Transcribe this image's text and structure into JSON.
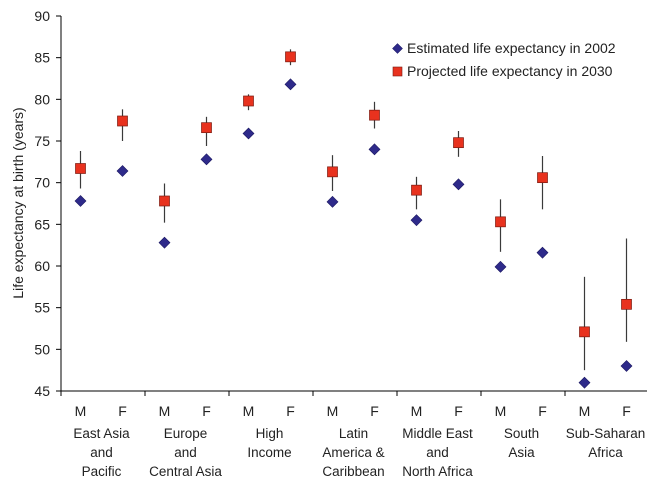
{
  "chart_data": {
    "type": "scatter",
    "ylabel": "Life expectancy at birth (years)",
    "xlabel": "",
    "ylim": [
      45,
      90
    ],
    "yticks": [
      45,
      50,
      55,
      60,
      65,
      70,
      75,
      80,
      85,
      90
    ],
    "grid": false,
    "legend_placement": "top-right",
    "sub_categories": [
      "M",
      "F",
      "M",
      "F",
      "M",
      "F",
      "M",
      "F",
      "M",
      "F",
      "M",
      "F",
      "M",
      "F"
    ],
    "groups": [
      {
        "label_lines": [
          "East Asia",
          "and",
          "Pacific"
        ]
      },
      {
        "label_lines": [
          "Europe",
          "and",
          "Central Asia"
        ]
      },
      {
        "label_lines": [
          "High",
          "Income"
        ]
      },
      {
        "label_lines": [
          "Latin",
          "America &",
          "Caribbean"
        ]
      },
      {
        "label_lines": [
          "Middle East",
          "and",
          "North Africa"
        ]
      },
      {
        "label_lines": [
          "South",
          "Asia"
        ]
      },
      {
        "label_lines": [
          "Sub-Saharan",
          "Africa"
        ]
      }
    ],
    "series": [
      {
        "name": "Estimated life expectancy in 2002",
        "marker": "diamond",
        "color": "#2e2a8a",
        "values": [
          67.8,
          71.4,
          62.8,
          72.8,
          75.9,
          81.8,
          67.7,
          74.0,
          65.5,
          69.8,
          59.9,
          61.6,
          46.0,
          48.0
        ]
      },
      {
        "name": "Projected life expectancy in 2030",
        "marker": "square",
        "color": "#e8321e",
        "values": [
          71.7,
          77.4,
          67.8,
          76.6,
          79.8,
          85.1,
          71.3,
          78.1,
          69.1,
          74.8,
          65.3,
          70.6,
          52.1,
          55.4
        ],
        "error_low": [
          69.3,
          75.0,
          65.2,
          74.4,
          78.7,
          84.1,
          69.0,
          76.5,
          66.8,
          73.1,
          61.7,
          66.8,
          47.5,
          50.9
        ],
        "error_high": [
          73.8,
          78.8,
          69.9,
          77.9,
          80.6,
          86.0,
          73.3,
          79.7,
          70.7,
          76.2,
          68.0,
          73.2,
          58.7,
          63.3
        ]
      }
    ]
  }
}
